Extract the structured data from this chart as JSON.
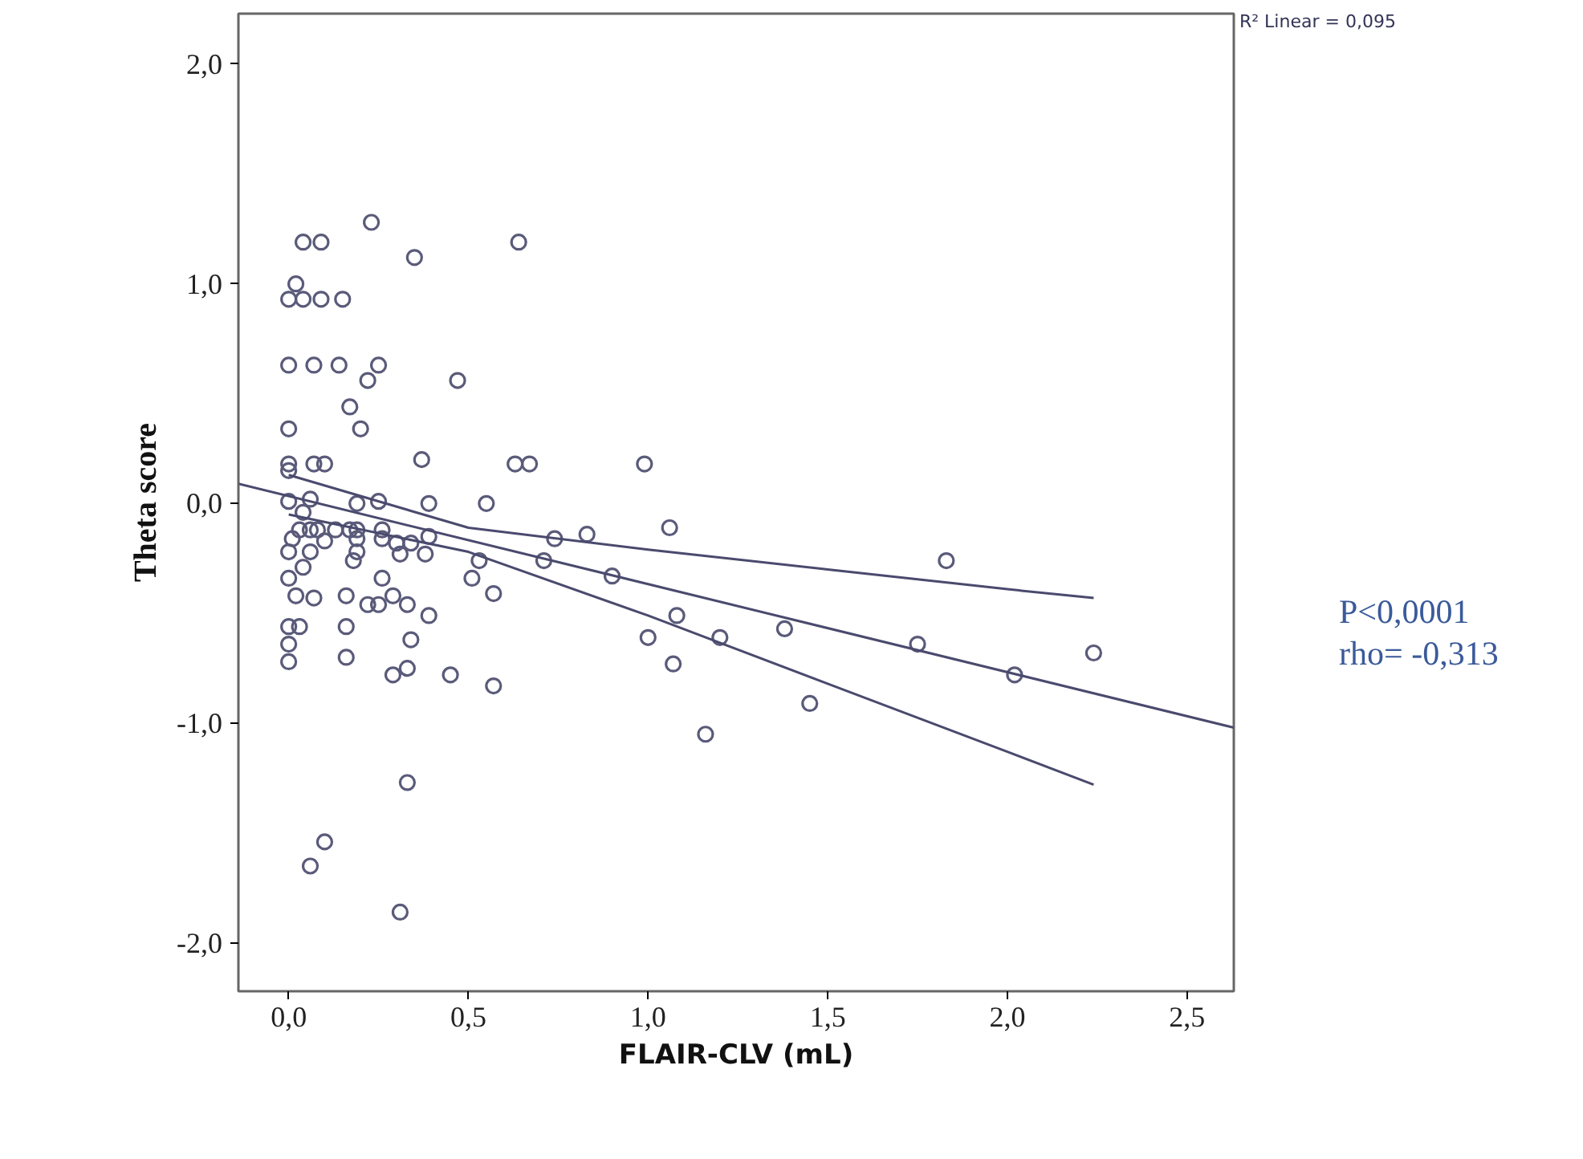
{
  "chart_data": {
    "type": "scatter",
    "xlabel": "FLAIR-CLV (mL)",
    "ylabel": "Theta score",
    "xlim": [
      -0.14,
      2.63
    ],
    "ylim": [
      -2.22,
      2.23
    ],
    "xticks": [
      {
        "value": 0,
        "label": "0,0"
      },
      {
        "value": 0.5,
        "label": "0,5"
      },
      {
        "value": 1,
        "label": "1,0"
      },
      {
        "value": 1.5,
        "label": "1,5"
      },
      {
        "value": 2,
        "label": "2,0"
      },
      {
        "value": 2.5,
        "label": "2,5"
      }
    ],
    "yticks": [
      {
        "value": -2,
        "label": "-2,0"
      },
      {
        "value": -1,
        "label": "-1,0"
      },
      {
        "value": 0,
        "label": "0,0"
      },
      {
        "value": 1,
        "label": "1,0"
      },
      {
        "value": 2,
        "label": "2,0"
      }
    ],
    "marker": "circle",
    "grid": false,
    "annotations": [
      "R² Linear = 0,095",
      "P<0,0001",
      "rho= -0,313"
    ],
    "series": [
      {
        "type": "scatter",
        "color": "#5a5a7a",
        "x": [
          0.04,
          0.09,
          0.64,
          0.35,
          0.23,
          0.02,
          0.0,
          0.04,
          0.09,
          0.15,
          0.0,
          0.07,
          0.14,
          0.25,
          0.22,
          0.47,
          0.17,
          0.0,
          0.2,
          0.37,
          0.0,
          0.0,
          0.07,
          0.1,
          0.63,
          0.67,
          0.99,
          0.0,
          0.06,
          0.19,
          0.25,
          0.39,
          0.55,
          0.04,
          0.03,
          0.06,
          0.08,
          0.13,
          0.17,
          0.19,
          0.1,
          0.01,
          0.19,
          0.26,
          0.26,
          0.3,
          0.34,
          0.39,
          0.74,
          0.83,
          1.06,
          1.83,
          0.9,
          0.0,
          0.06,
          0.19,
          0.18,
          0.31,
          0.38,
          0.53,
          0.71,
          0.04,
          0.0,
          0.26,
          0.51,
          0.02,
          0.07,
          0.16,
          0.22,
          0.25,
          0.29,
          0.33,
          0.57,
          0.39,
          1.08,
          1.0,
          1.2,
          1.38,
          1.75,
          2.24,
          2.02,
          1.07,
          1.45,
          1.16,
          0.0,
          0.03,
          0.16,
          0.0,
          0.34,
          0.0,
          0.16,
          0.33,
          0.29,
          0.45,
          0.57,
          0.33,
          0.1,
          0.06,
          0.31
        ],
        "values": [
          1.19,
          1.19,
          1.19,
          1.12,
          1.28,
          1.0,
          0.93,
          0.93,
          0.93,
          0.93,
          0.63,
          0.63,
          0.63,
          0.63,
          0.56,
          0.56,
          0.44,
          0.34,
          0.34,
          0.2,
          0.18,
          0.15,
          0.18,
          0.18,
          0.18,
          0.18,
          0.18,
          0.01,
          0.02,
          0.0,
          0.01,
          0.0,
          0.0,
          -0.04,
          -0.12,
          -0.12,
          -0.12,
          -0.12,
          -0.12,
          -0.12,
          -0.17,
          -0.16,
          -0.16,
          -0.12,
          -0.16,
          -0.18,
          -0.18,
          -0.15,
          -0.16,
          -0.14,
          -0.11,
          -0.26,
          -0.33,
          -0.22,
          -0.22,
          -0.22,
          -0.26,
          -0.23,
          -0.23,
          -0.26,
          -0.26,
          -0.29,
          -0.34,
          -0.34,
          -0.34,
          -0.42,
          -0.43,
          -0.42,
          -0.46,
          -0.46,
          -0.42,
          -0.46,
          -0.41,
          -0.51,
          -0.51,
          -0.61,
          -0.61,
          -0.57,
          -0.64,
          -0.68,
          -0.78,
          -0.73,
          -0.91,
          -1.05,
          -0.56,
          -0.56,
          -0.56,
          -0.64,
          -0.62,
          -0.72,
          -0.7,
          -0.75,
          -0.78,
          -0.78,
          -0.83,
          -1.27,
          -1.54,
          -1.65,
          -1.86
        ]
      },
      {
        "type": "line",
        "marker": "none",
        "color": "#4a4a6e",
        "x": [
          -0.14,
          2.63
        ],
        "values": [
          0.09,
          -1.02
        ]
      },
      {
        "type": "line",
        "marker": "none",
        "color": "#4a4a6e",
        "x": [
          0,
          0.5,
          1.0,
          1.5,
          2.0,
          2.24
        ],
        "values": [
          0.13,
          -0.11,
          -0.21,
          -0.3,
          -0.39,
          -0.43
        ]
      },
      {
        "type": "line",
        "marker": "none",
        "color": "#4a4a6e",
        "x": [
          0,
          0.5,
          1.0,
          1.5,
          2.0,
          2.24
        ],
        "values": [
          -0.05,
          -0.22,
          -0.51,
          -0.82,
          -1.13,
          -1.28
        ]
      }
    ]
  }
}
